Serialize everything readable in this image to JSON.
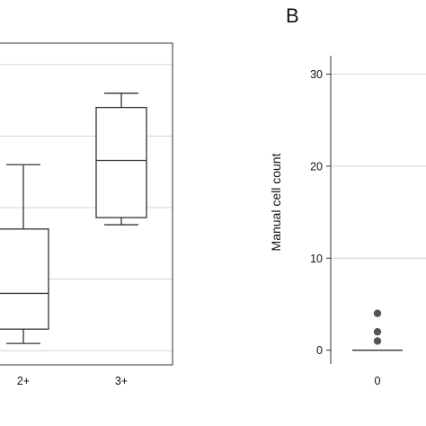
{
  "chart_data": [
    {
      "type": "box",
      "panel_letter": "",
      "categories": [
        "2+",
        "3+"
      ],
      "boxes": [
        {
          "category": "2+",
          "whisker_low": 0.5,
          "q1": 1.5,
          "median": 4.0,
          "q3": 8.5,
          "whisker_high": 13.0
        },
        {
          "category": "3+",
          "whisker_low": 8.8,
          "q1": 9.3,
          "median": 13.3,
          "q3": 17.0,
          "whisker_high": 18.0
        }
      ],
      "gridlines_y": [
        0.0,
        5.0,
        10.0,
        15.0,
        20.0
      ],
      "ylim": [
        -1.0,
        21.5
      ],
      "grid": true,
      "frame": true
    },
    {
      "type": "box",
      "panel_letter": "B",
      "ylabel": "Manual cell count",
      "categories": [
        "0"
      ],
      "boxes": [
        {
          "category": "0",
          "whisker_low": 0,
          "q1": 0,
          "median": 0,
          "q3": 0,
          "whisker_high": 0,
          "outliers": [
            1,
            2,
            4
          ]
        }
      ],
      "yticks": [
        0,
        10,
        20,
        30
      ],
      "ylim": [
        -1.5,
        32
      ],
      "grid": true,
      "frame": false
    }
  ]
}
